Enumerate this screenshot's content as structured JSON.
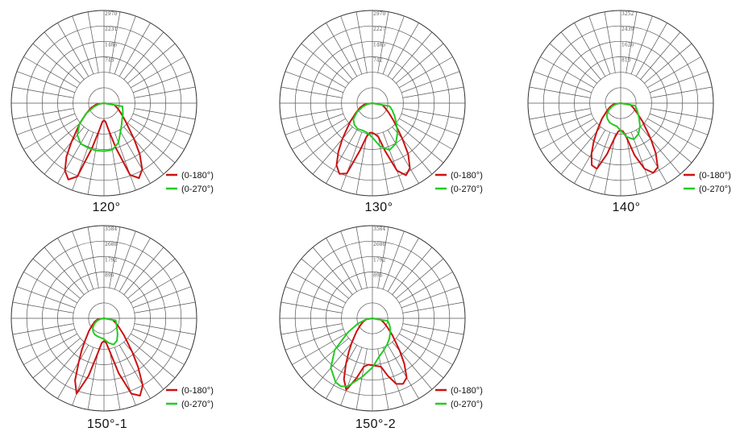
{
  "chart_data": [
    {
      "type": "polar",
      "caption": "120°",
      "rings": [
        "2970",
        "2231",
        "1486",
        "743"
      ],
      "legend": [
        "(0-180°)",
        "(0-270°)"
      ],
      "series": [
        {
          "name": "(0-180°)",
          "color": "#cc1111",
          "points": [
            [
              0,
              0
            ],
            [
              10,
              260
            ],
            [
              20,
              440
            ],
            [
              30,
              650
            ],
            [
              40,
              1010
            ],
            [
              50,
              1620
            ],
            [
              55,
              2100
            ],
            [
              60,
              2500
            ],
            [
              65,
              2700
            ],
            [
              70,
              2500
            ],
            [
              75,
              1500
            ],
            [
              80,
              900
            ],
            [
              85,
              600
            ],
            [
              90,
              550
            ],
            [
              95,
              600
            ],
            [
              100,
              900
            ],
            [
              105,
              1500
            ],
            [
              110,
              2450
            ],
            [
              115,
              2650
            ],
            [
              120,
              2450
            ],
            [
              125,
              2000
            ],
            [
              130,
              1500
            ],
            [
              140,
              900
            ],
            [
              150,
              620
            ],
            [
              160,
              460
            ],
            [
              170,
              330
            ],
            [
              180,
              0
            ]
          ]
        },
        {
          "name": "(0-270°)",
          "color": "#22cc22",
          "points": [
            [
              0,
              0
            ],
            [
              10,
              140
            ],
            [
              20,
              340
            ],
            [
              30,
              660
            ],
            [
              40,
              1020
            ],
            [
              50,
              1330
            ],
            [
              60,
              1500
            ],
            [
              70,
              1520
            ],
            [
              80,
              1540
            ],
            [
              90,
              1540
            ],
            [
              100,
              1520
            ],
            [
              110,
              1350
            ],
            [
              120,
              1060
            ],
            [
              130,
              880
            ],
            [
              140,
              760
            ],
            [
              150,
              700
            ],
            [
              160,
              640
            ],
            [
              170,
              600
            ],
            [
              180,
              0
            ]
          ]
        }
      ]
    },
    {
      "type": "polar",
      "caption": "130°",
      "rings": [
        "2970",
        "2227",
        "1485",
        "742"
      ],
      "legend": [
        "(0-180°)",
        "(0-270°)"
      ],
      "series": [
        {
          "name": "(0-180°)",
          "color": "#cc1111",
          "points": [
            [
              0,
              0
            ],
            [
              10,
              270
            ],
            [
              20,
              420
            ],
            [
              30,
              600
            ],
            [
              40,
              930
            ],
            [
              50,
              1500
            ],
            [
              55,
              1900
            ],
            [
              60,
              2300
            ],
            [
              65,
              2500
            ],
            [
              70,
              2400
            ],
            [
              75,
              1600
            ],
            [
              80,
              1100
            ],
            [
              85,
              950
            ],
            [
              90,
              950
            ],
            [
              95,
              1000
            ],
            [
              100,
              1100
            ],
            [
              105,
              1600
            ],
            [
              110,
              2300
            ],
            [
              115,
              2550
            ],
            [
              120,
              2400
            ],
            [
              125,
              2000
            ],
            [
              130,
              1500
            ],
            [
              140,
              900
            ],
            [
              150,
              600
            ],
            [
              160,
              430
            ],
            [
              170,
              320
            ],
            [
              180,
              0
            ]
          ]
        },
        {
          "name": "(0-270°)",
          "color": "#22cc22",
          "points": [
            [
              0,
              0
            ],
            [
              10,
              150
            ],
            [
              20,
              320
            ],
            [
              30,
              560
            ],
            [
              40,
              800
            ],
            [
              50,
              900
            ],
            [
              60,
              950
            ],
            [
              70,
              930
            ],
            [
              80,
              960
            ],
            [
              90,
              1100
            ],
            [
              100,
              1400
            ],
            [
              110,
              1600
            ],
            [
              120,
              1500
            ],
            [
              130,
              1250
            ],
            [
              140,
              1000
            ],
            [
              150,
              820
            ],
            [
              160,
              680
            ],
            [
              170,
              560
            ],
            [
              180,
              0
            ]
          ]
        }
      ]
    },
    {
      "type": "polar",
      "caption": "140°",
      "rings": [
        "3252",
        "2439",
        "1626",
        "813"
      ],
      "legend": [
        "(0-180°)",
        "(0-270°)"
      ],
      "series": [
        {
          "name": "(0-180°)",
          "color": "#cc1111",
          "points": [
            [
              0,
              0
            ],
            [
              10,
              260
            ],
            [
              20,
              400
            ],
            [
              30,
              560
            ],
            [
              40,
              860
            ],
            [
              50,
              1300
            ],
            [
              55,
              1650
            ],
            [
              60,
              2050
            ],
            [
              65,
              2400
            ],
            [
              70,
              2450
            ],
            [
              75,
              1850
            ],
            [
              80,
              1250
            ],
            [
              85,
              1000
            ],
            [
              90,
              950
            ],
            [
              95,
              1000
            ],
            [
              100,
              1250
            ],
            [
              105,
              1900
            ],
            [
              110,
              2450
            ],
            [
              115,
              2700
            ],
            [
              120,
              2600
            ],
            [
              125,
              2150
            ],
            [
              130,
              1650
            ],
            [
              140,
              1000
            ],
            [
              150,
              650
            ],
            [
              160,
              470
            ],
            [
              170,
              350
            ],
            [
              180,
              0
            ]
          ]
        },
        {
          "name": "(0-270°)",
          "color": "#22cc22",
          "points": [
            [
              0,
              0
            ],
            [
              10,
              150
            ],
            [
              20,
              300
            ],
            [
              30,
              480
            ],
            [
              40,
              640
            ],
            [
              50,
              720
            ],
            [
              60,
              780
            ],
            [
              70,
              800
            ],
            [
              80,
              820
            ],
            [
              90,
              960
            ],
            [
              100,
              1200
            ],
            [
              110,
              1350
            ],
            [
              120,
              1250
            ],
            [
              130,
              1050
            ],
            [
              140,
              850
            ],
            [
              150,
              700
            ],
            [
              160,
              600
            ],
            [
              170,
              520
            ],
            [
              180,
              0
            ]
          ]
        }
      ]
    },
    {
      "type": "polar",
      "caption": "150°-1",
      "rings": [
        "3584",
        "2688",
        "1792",
        "896"
      ],
      "legend": [
        "(0-180°)",
        "(0-270°)"
      ],
      "series": [
        {
          "name": "(0-180°)",
          "color": "#cc1111",
          "points": [
            [
              0,
              0
            ],
            [
              10,
              250
            ],
            [
              20,
              380
            ],
            [
              30,
              520
            ],
            [
              40,
              760
            ],
            [
              50,
              1150
            ],
            [
              55,
              1500
            ],
            [
              60,
              1950
            ],
            [
              65,
              2650
            ],
            [
              70,
              3100
            ],
            [
              75,
              2300
            ],
            [
              80,
              1350
            ],
            [
              85,
              950
            ],
            [
              90,
              880
            ],
            [
              95,
              950
            ],
            [
              100,
              1300
            ],
            [
              105,
              2200
            ],
            [
              110,
              3100
            ],
            [
              115,
              3300
            ],
            [
              120,
              3000
            ],
            [
              125,
              2300
            ],
            [
              130,
              1700
            ],
            [
              140,
              1000
            ],
            [
              150,
              650
            ],
            [
              160,
              460
            ],
            [
              170,
              340
            ],
            [
              180,
              0
            ]
          ]
        },
        {
          "name": "(0-270°)",
          "color": "#22cc22",
          "points": [
            [
              0,
              0
            ],
            [
              10,
              140
            ],
            [
              20,
              290
            ],
            [
              30,
              430
            ],
            [
              40,
              560
            ],
            [
              50,
              660
            ],
            [
              60,
              720
            ],
            [
              70,
              740
            ],
            [
              80,
              760
            ],
            [
              90,
              800
            ],
            [
              100,
              960
            ],
            [
              110,
              1080
            ],
            [
              120,
              1000
            ],
            [
              130,
              820
            ],
            [
              140,
              660
            ],
            [
              150,
              560
            ],
            [
              160,
              500
            ],
            [
              170,
              460
            ],
            [
              180,
              0
            ]
          ]
        }
      ]
    },
    {
      "type": "polar",
      "caption": "150°-2",
      "rings": [
        "3584",
        "2688",
        "1792",
        "896"
      ],
      "legend": [
        "(0-180°)",
        "(0-270°)"
      ],
      "series": [
        {
          "name": "(0-180°)",
          "color": "#cc1111",
          "points": [
            [
              0,
              0
            ],
            [
              10,
              250
            ],
            [
              20,
              380
            ],
            [
              30,
              540
            ],
            [
              40,
              800
            ],
            [
              50,
              1250
            ],
            [
              55,
              1600
            ],
            [
              60,
              2050
            ],
            [
              65,
              2600
            ],
            [
              70,
              2950
            ],
            [
              75,
              2400
            ],
            [
              80,
              1900
            ],
            [
              85,
              1800
            ],
            [
              90,
              1820
            ],
            [
              95,
              1850
            ],
            [
              100,
              1900
            ],
            [
              105,
              2300
            ],
            [
              110,
              2700
            ],
            [
              115,
              2800
            ],
            [
              120,
              2650
            ],
            [
              125,
              2150
            ],
            [
              130,
              1650
            ],
            [
              140,
              1000
            ],
            [
              150,
              650
            ],
            [
              160,
              460
            ],
            [
              170,
              340
            ],
            [
              180,
              0
            ]
          ]
        },
        {
          "name": "(0-270°)",
          "color": "#22cc22",
          "points": [
            [
              0,
              0
            ],
            [
              10,
              250
            ],
            [
              20,
              600
            ],
            [
              30,
              1100
            ],
            [
              40,
              1900
            ],
            [
              50,
              2500
            ],
            [
              60,
              2850
            ],
            [
              65,
              2900
            ],
            [
              70,
              2800
            ],
            [
              80,
              2300
            ],
            [
              90,
              1900
            ],
            [
              100,
              1500
            ],
            [
              110,
              1300
            ],
            [
              120,
              1150
            ],
            [
              130,
              1020
            ],
            [
              140,
              900
            ],
            [
              150,
              800
            ],
            [
              160,
              700
            ],
            [
              170,
              600
            ],
            [
              180,
              0
            ]
          ]
        }
      ]
    }
  ]
}
